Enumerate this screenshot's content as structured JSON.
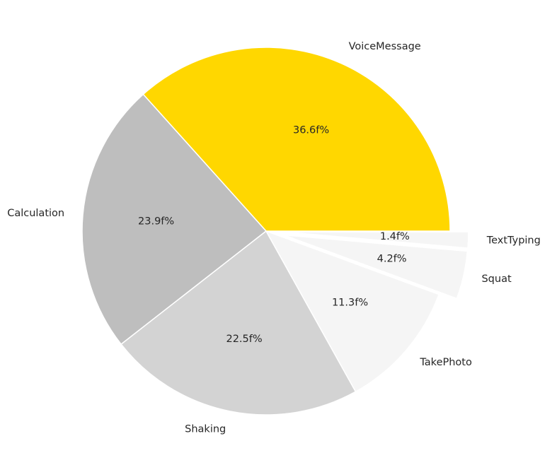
{
  "chart_data": {
    "type": "pie",
    "title": "",
    "start_angle_deg": 0,
    "direction": "counterclockwise",
    "slices": [
      {
        "label": "VoiceMessage",
        "value": 36.6,
        "pct_label": "36.6f%",
        "color": "#FFD700",
        "explode": 0
      },
      {
        "label": "Calculation",
        "value": 23.9,
        "pct_label": "23.9f%",
        "color": "#BEBEBE",
        "explode": 0
      },
      {
        "label": "Shaking",
        "value": 22.5,
        "pct_label": "22.5f%",
        "color": "#D3D3D3",
        "explode": 0
      },
      {
        "label": "TakePhoto",
        "value": 11.3,
        "pct_label": "11.3f%",
        "color": "#F5F5F5",
        "explode": 0
      },
      {
        "label": "Squat",
        "value": 4.2,
        "pct_label": "4.2f%",
        "color": "#F5F5F5",
        "explode": 0.1
      },
      {
        "label": "TextTyping",
        "value": 1.4,
        "pct_label": "1.4f%",
        "color": "#F5F5F5",
        "explode": 0.1
      }
    ]
  }
}
